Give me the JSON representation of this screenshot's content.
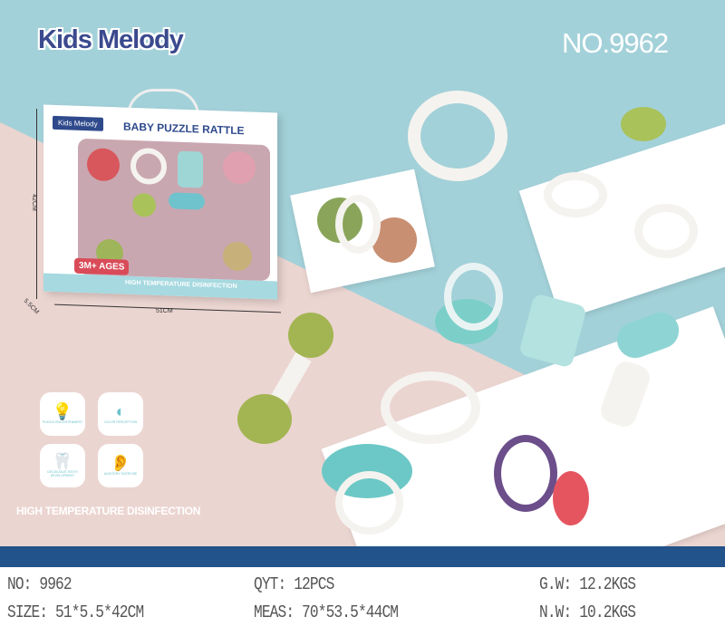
{
  "header": {
    "brand": "Kids Melody",
    "model_number": "NO.9962"
  },
  "package": {
    "brand": "Kids Melody",
    "title": "BABY PUZZLE RATTLE",
    "age_badge": "3M+ AGES",
    "strip_text": "HIGH TEMPERATURE DISINFECTION",
    "height_label": "42CM",
    "width_label": "51CM",
    "depth_label": "5.5CM"
  },
  "features": [
    {
      "icon": "lightbulb-head-icon",
      "label": "PUZZLE ENLIGHTENMENT"
    },
    {
      "icon": "half-circle-icon",
      "label": "COLOR PERCEPTION"
    },
    {
      "icon": "tooth-icon",
      "label": "DECIDUOUS TEETH DEVELOPMENT"
    },
    {
      "icon": "ear-icon",
      "label": "AUDITORY EXERCISE"
    }
  ],
  "disinfection": "HIGH TEMPERATURE DISINFECTION",
  "colors": {
    "teal_bg": "#a3d1d9",
    "pink_bg": "#ebd5d1",
    "band": "#22538a",
    "brand": "#3b4a8e"
  },
  "specs": {
    "no": "NO: 9962",
    "size": "SIZE: 51*5.5*42CM",
    "qty": "QYT: 12PCS",
    "meas": "MEAS: 70*53.5*44CM",
    "gw": "G.W: 12.2KGS",
    "nw": "N.W: 10.2KGS"
  }
}
